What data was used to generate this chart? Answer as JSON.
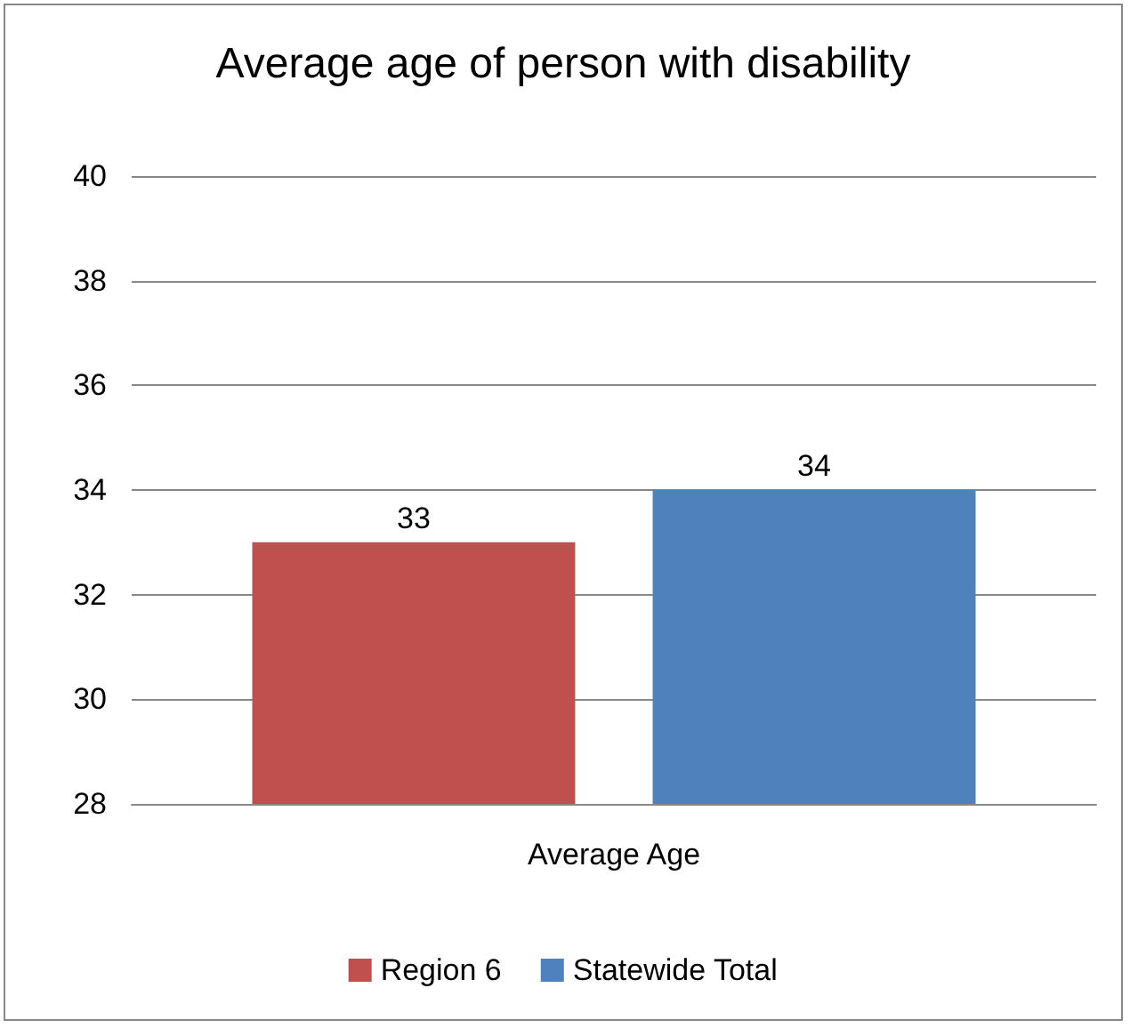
{
  "chart_data": {
    "type": "bar",
    "title": "Average age of person with disability",
    "categories": [
      "Average Age"
    ],
    "series": [
      {
        "name": "Region 6",
        "color": "#c0504d",
        "values": [
          33
        ]
      },
      {
        "name": "Statewide Total",
        "color": "#4f81bd",
        "values": [
          34
        ]
      }
    ],
    "ylim": [
      28,
      40
    ],
    "yticks": [
      28,
      30,
      32,
      34,
      36,
      38,
      40
    ],
    "grid": "y",
    "legend": "bottom",
    "data_labels": true
  }
}
